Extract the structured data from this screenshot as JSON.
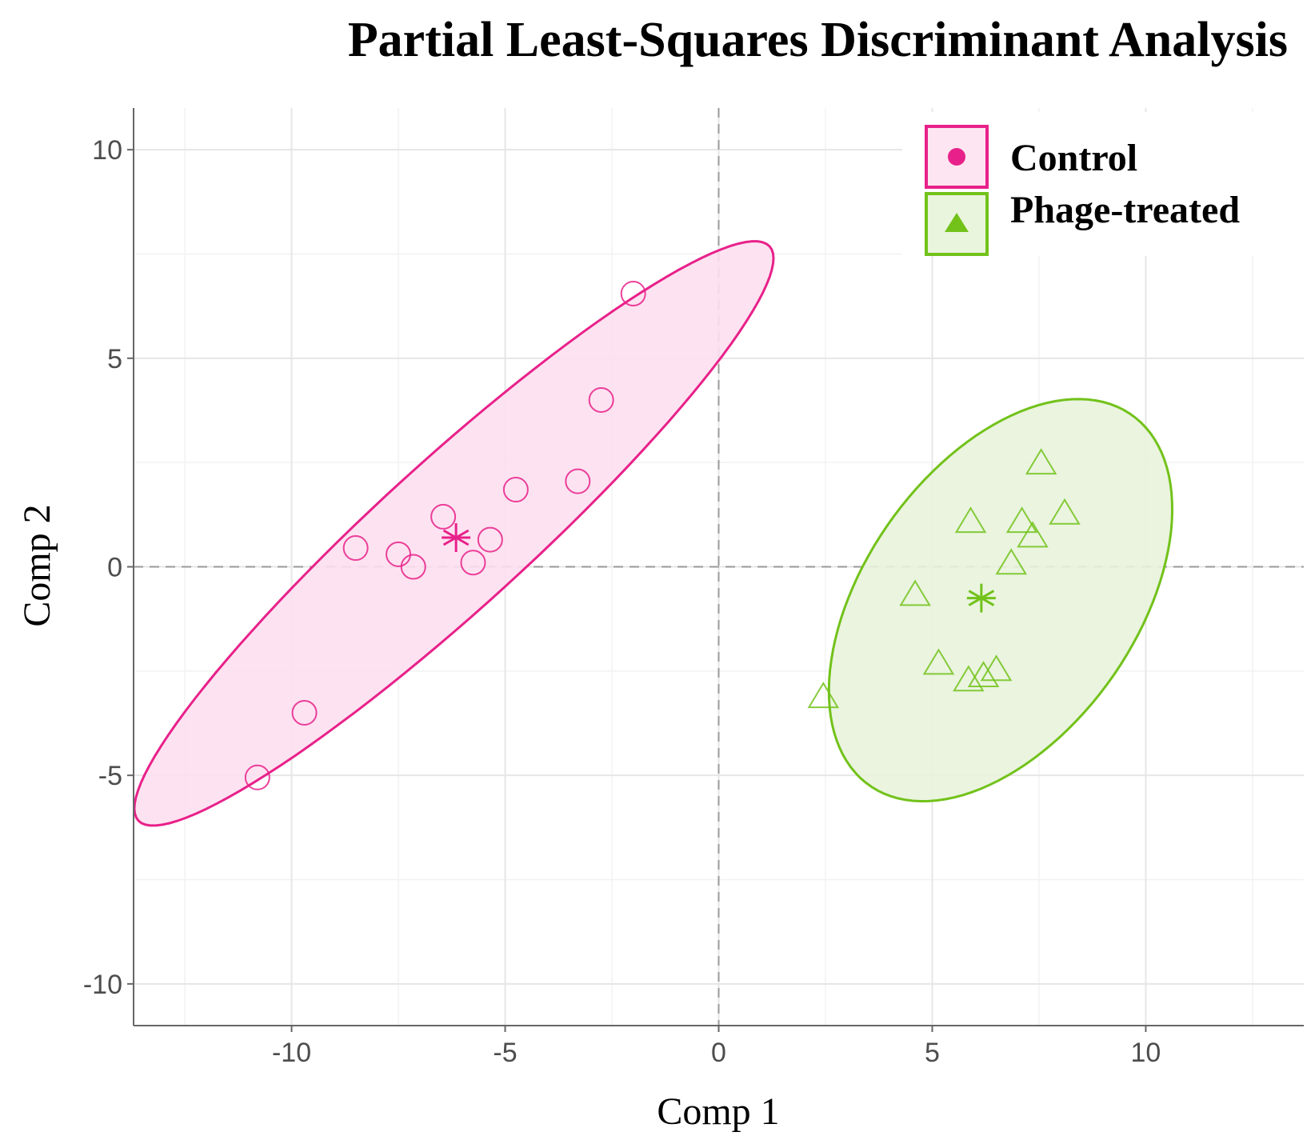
{
  "chart_data": {
    "type": "scatter",
    "title": "Partial Least-Squares Discriminant Analysis",
    "xlabel": "Comp 1",
    "ylabel": "Comp 2",
    "xlim": [
      -13.7,
      13.7
    ],
    "ylim": [
      -11,
      11
    ],
    "x_ticks": [
      -10,
      -5,
      0,
      5,
      10
    ],
    "y_ticks": [
      10,
      5,
      0,
      -5,
      -10
    ],
    "x_tick_labels": [
      "-10",
      "-5",
      "0",
      "5",
      "10"
    ],
    "y_tick_labels": [
      "10",
      "5",
      "0",
      "-5",
      "-10"
    ],
    "legend_position": "top-right",
    "series": [
      {
        "name": "Control",
        "marker": "circle",
        "color": "#e8218a",
        "fill": "#fde0ef",
        "points": [
          {
            "x": -10.8,
            "y": -5.05
          },
          {
            "x": -9.7,
            "y": -3.5
          },
          {
            "x": -8.5,
            "y": 0.45
          },
          {
            "x": -7.5,
            "y": 0.3
          },
          {
            "x": -7.15,
            "y": 0.0
          },
          {
            "x": -6.45,
            "y": 1.2
          },
          {
            "x": -5.75,
            "y": 0.1
          },
          {
            "x": -5.35,
            "y": 0.65
          },
          {
            "x": -4.75,
            "y": 1.85
          },
          {
            "x": -3.3,
            "y": 2.05
          },
          {
            "x": -2.75,
            "y": 4.0
          },
          {
            "x": -2.0,
            "y": 6.55
          }
        ],
        "centroid": {
          "x": -6.15,
          "y": 0.7
        },
        "ellipse": {
          "cx": -6.2,
          "cy": 0.8,
          "semi_major": 10.1,
          "semi_minor": 1.75,
          "angle_deg": 43
        }
      },
      {
        "name": "Phage-treated",
        "marker": "triangle",
        "color": "#72c21a",
        "fill": "#e8f3dc",
        "points": [
          {
            "x": 2.45,
            "y": -3.15
          },
          {
            "x": 4.6,
            "y": -0.7
          },
          {
            "x": 5.15,
            "y": -2.35
          },
          {
            "x": 5.85,
            "y": -2.75
          },
          {
            "x": 6.2,
            "y": -2.65
          },
          {
            "x": 6.5,
            "y": -2.5
          },
          {
            "x": 5.9,
            "y": 1.05
          },
          {
            "x": 6.85,
            "y": 0.05
          },
          {
            "x": 7.1,
            "y": 1.05
          },
          {
            "x": 7.35,
            "y": 0.7
          },
          {
            "x": 7.55,
            "y": 2.45
          },
          {
            "x": 8.1,
            "y": 1.25
          }
        ],
        "centroid": {
          "x": 6.15,
          "y": -0.75
        },
        "ellipse": {
          "cx": 6.6,
          "cy": -0.8,
          "semi_major": 5.4,
          "semi_minor": 3.2,
          "angle_deg": 56
        }
      }
    ]
  }
}
